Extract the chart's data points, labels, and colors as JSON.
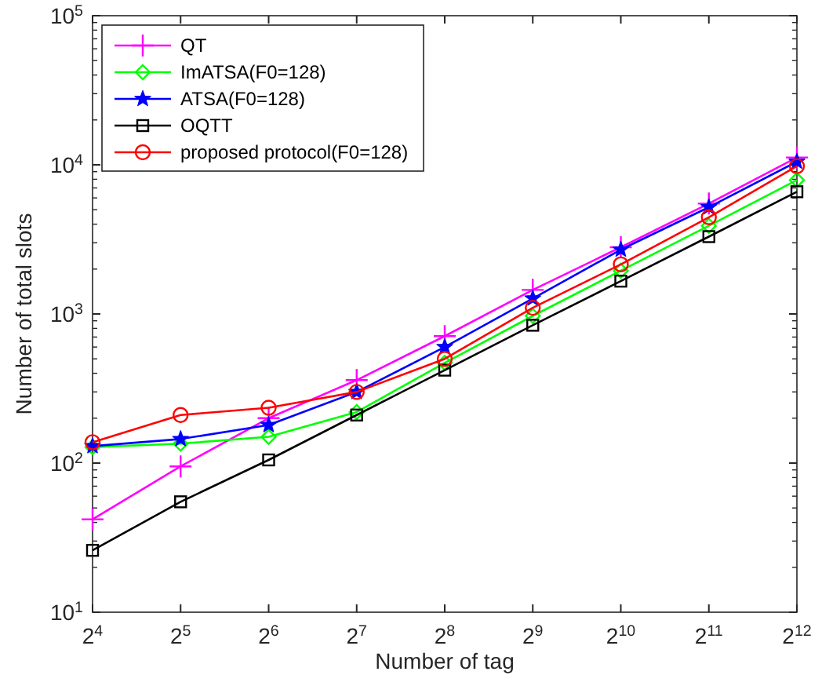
{
  "chart_data": {
    "type": "line",
    "xlabel": "Number of tag",
    "ylabel": "Number of total slots",
    "log": "xy",
    "grid": false,
    "legend": "top left",
    "line_style": "solid",
    "x": [
      16,
      32,
      64,
      128,
      256,
      512,
      1024,
      2048,
      4096
    ],
    "xlim": [
      16,
      4096
    ],
    "xticks": [
      {
        "value": 16,
        "label": "2$^{4}$"
      },
      {
        "value": 32,
        "label": "2$^{5}$"
      },
      {
        "value": 64,
        "label": "2$^{6}$"
      },
      {
        "value": 128,
        "label": "2$^{7}$"
      },
      {
        "value": 256,
        "label": "2$^{8}$"
      },
      {
        "value": 512,
        "label": "2$^{9}$"
      },
      {
        "value": 1024,
        "label": "2$^{10}$"
      },
      {
        "value": 2048,
        "label": "2$^{11}$"
      },
      {
        "value": 4096,
        "label": "2$^{12}$"
      }
    ],
    "ylim": [
      10,
      100000
    ],
    "yticks": [
      {
        "value": 10,
        "label": "10$^{1}$"
      },
      {
        "value": 100,
        "label": "10$^{2}$"
      },
      {
        "value": 1000,
        "label": "10$^{3}$"
      },
      {
        "value": 10000,
        "label": "10$^{4}$"
      },
      {
        "value": 100000,
        "label": "10$^{5}$"
      }
    ],
    "series": [
      {
        "name": "QT",
        "color": "#ff00ff",
        "marker": "cross",
        "values": [
          42,
          95,
          200,
          360,
          710,
          1450,
          2800,
          5500,
          11200
        ]
      },
      {
        "name": "ImATSA(F0=128)",
        "color": "#00ff00",
        "marker": "diamond",
        "values": [
          128,
          135,
          150,
          220,
          470,
          970,
          1950,
          3900,
          7900
        ]
      },
      {
        "name": "ATSA(F0=128)",
        "color": "#0000ff",
        "marker": "star",
        "values": [
          130,
          145,
          180,
          300,
          600,
          1270,
          2700,
          5200,
          10500
        ]
      },
      {
        "name": "OQTT",
        "color": "#000000",
        "marker": "square",
        "values": [
          26,
          55,
          105,
          210,
          420,
          840,
          1660,
          3300,
          6600
        ]
      },
      {
        "name": "proposed protocol(F0=128)",
        "color": "#ff0000",
        "marker": "circle",
        "values": [
          138,
          210,
          235,
          300,
          500,
          1100,
          2150,
          4450,
          9800
        ]
      }
    ]
  }
}
